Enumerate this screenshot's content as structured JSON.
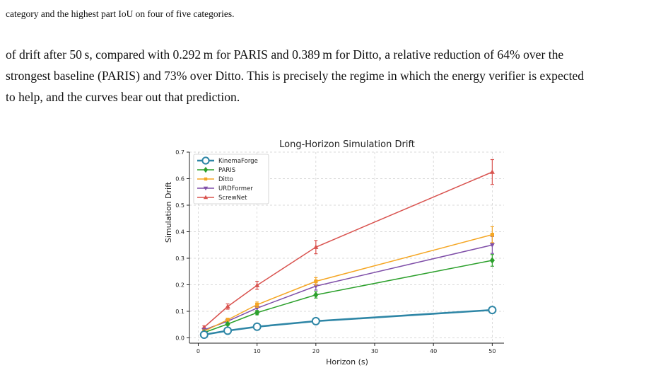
{
  "caption_tail": "category and the highest part IoU on four of five categories.",
  "paragraph_lines": [
    "of drift after 50 s, compared with 0.292 m for PARIS and 0.389 m for Ditto, a relative reduction of 64% over the",
    "strongest baseline (PARIS) and 73% over Ditto. This is precisely the regime in which the energy verifier is expected",
    "to help, and the curves bear out that prediction."
  ],
  "chart_data": {
    "type": "line",
    "title": "Long-Horizon Simulation Drift",
    "xlabel": "Horizon (s)",
    "ylabel": "Simulation Drift",
    "x": [
      1,
      5,
      10,
      20,
      50
    ],
    "xlim": [
      -1.5,
      52
    ],
    "ylim": [
      -0.02,
      0.7
    ],
    "xticks": [
      0,
      10,
      20,
      30,
      40,
      50
    ],
    "yticks": [
      0.0,
      0.1,
      0.2,
      0.3,
      0.4,
      0.5,
      0.6,
      0.7
    ],
    "grid": true,
    "legend_position": "top-left",
    "series": [
      {
        "name": "KinemaForge",
        "color": "#2e86a6",
        "marker": "circle-open",
        "values": [
          0.012,
          0.027,
          0.042,
          0.063,
          0.105
        ],
        "errors": [
          0.002,
          0.003,
          0.003,
          0.004,
          0.005
        ]
      },
      {
        "name": "PARIS",
        "color": "#2ca02c",
        "marker": "diamond",
        "values": [
          0.02,
          0.052,
          0.095,
          0.162,
          0.292
        ],
        "errors": [
          0.003,
          0.005,
          0.008,
          0.012,
          0.022
        ]
      },
      {
        "name": "Ditto",
        "color": "#f5a623",
        "marker": "square",
        "values": [
          0.025,
          0.068,
          0.125,
          0.213,
          0.389
        ],
        "errors": [
          0.003,
          0.006,
          0.01,
          0.014,
          0.03
        ]
      },
      {
        "name": "URDFormer",
        "color": "#7f4fa8",
        "marker": "triangle-down",
        "values": [
          0.03,
          0.063,
          0.112,
          0.195,
          0.35
        ],
        "errors": [
          0.004,
          0.006,
          0.01,
          0.015,
          0.032
        ]
      },
      {
        "name": "ScrewNet",
        "color": "#d9534f",
        "marker": "triangle-up",
        "values": [
          0.04,
          0.118,
          0.198,
          0.342,
          0.625
        ],
        "errors": [
          0.005,
          0.01,
          0.015,
          0.025,
          0.047
        ]
      }
    ]
  }
}
